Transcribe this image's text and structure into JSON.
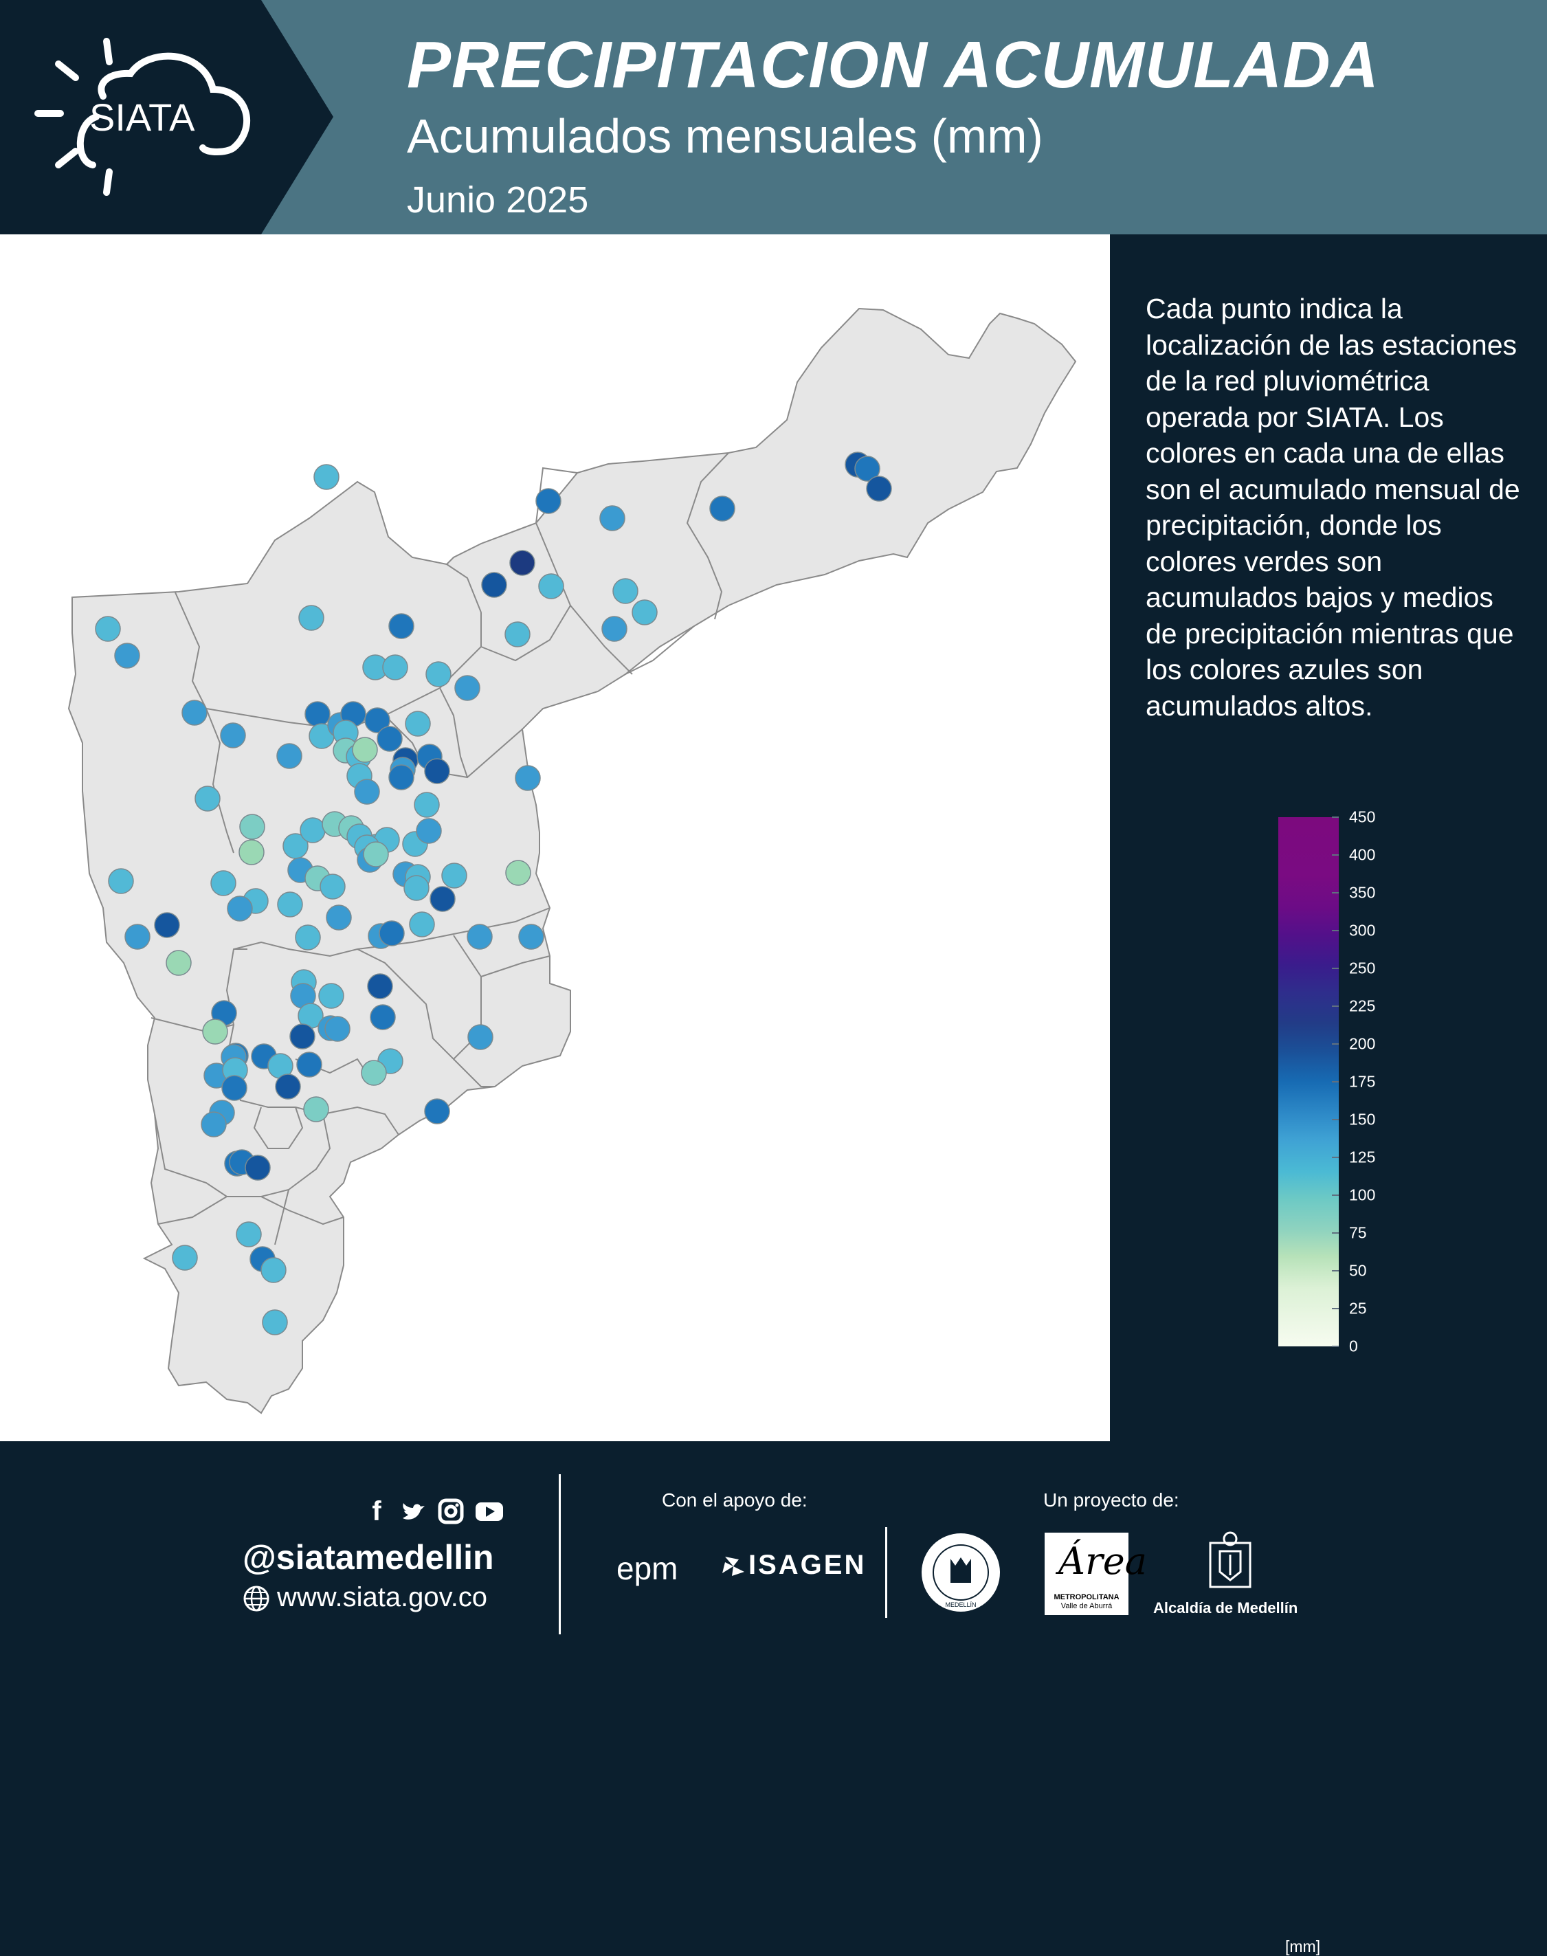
{
  "header": {
    "logo_text": "SIATA",
    "title": "PRECIPITACION ACUMULADA",
    "subtitle": "Acumulados mensuales (mm)",
    "date": "Junio 2025"
  },
  "side_panel": {
    "description": "Cada  punto indica la localización de las estaciones de la red pluviométrica operada por SIATA. Los colores en cada una de ellas son el acumulado mensual de precipitación, donde los colores verdes son acumulados bajos y medios de precipitación mientras que los colores azules son acumulados altos.",
    "legend": {
      "ticks": [
        "450",
        "400",
        "350",
        "300",
        "250",
        "225",
        "200",
        "175",
        "150",
        "125",
        "100",
        "75",
        "50",
        "25",
        "0"
      ],
      "unit": "[mm]"
    }
  },
  "map": {
    "region_fill": "#e6e6e6",
    "border_color": "#8a8a8a",
    "station_colors": {
      "very_low": "#9ad8b4",
      "low": "#7ccdc4",
      "medium": "#52b9d6",
      "high": "#3b9bd1",
      "very_high": "#1f76bb",
      "extreme": "#15569e",
      "max": "#1c3a80"
    }
  },
  "footer": {
    "social_icons": [
      "facebook-icon",
      "twitter-icon",
      "instagram-icon",
      "youtube-icon"
    ],
    "handle": "@siatamedellin",
    "website": "www.siata.gov.co",
    "support_label": "Con el apoyo de:",
    "sponsor_1": "epm",
    "sponsor_2": "ISAGEN",
    "project_label": "Un proyecto de:",
    "seal_text": "MEDELLÍN",
    "area_title": "METROPOLITANA",
    "area_subtitle": "Valle de Aburrá",
    "area_mark": "Área",
    "alcaldia": "Alcaldía de Medellín"
  }
}
